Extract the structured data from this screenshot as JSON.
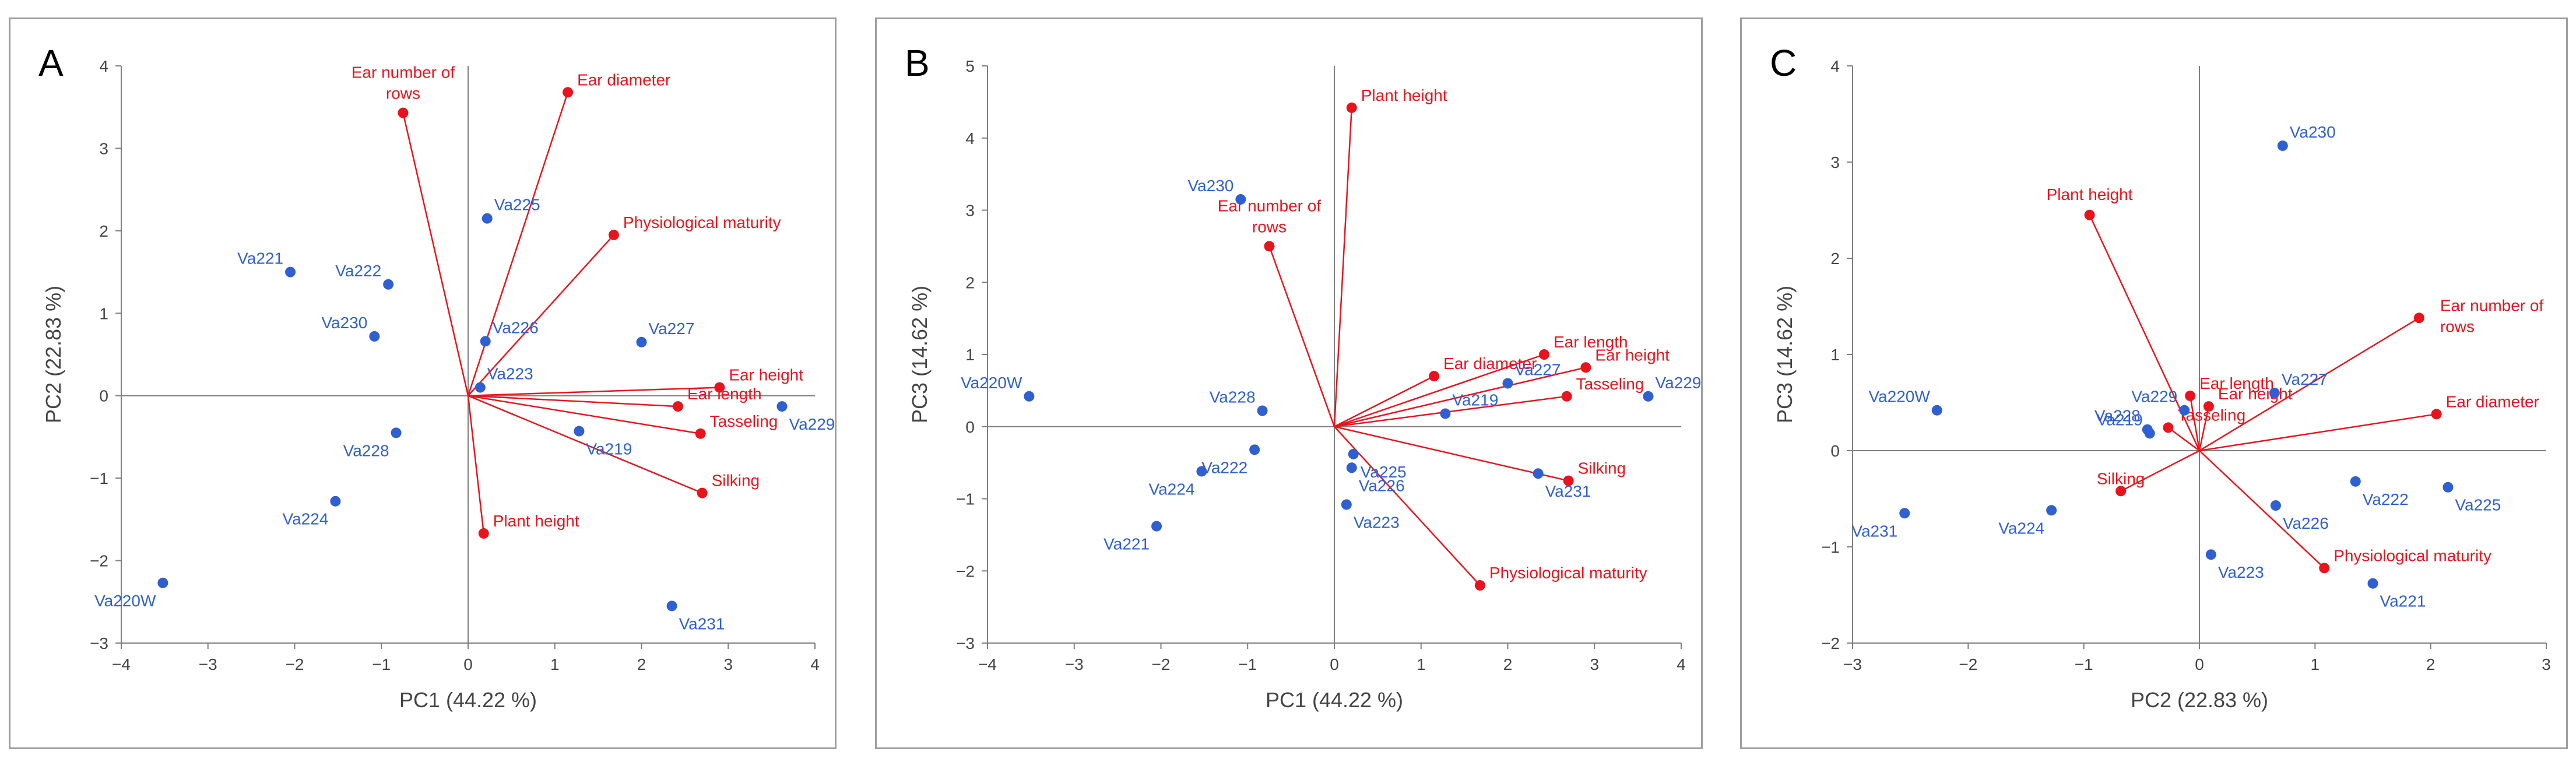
{
  "chart_data": [
    {
      "type": "scatter",
      "panel_label": "A",
      "title": "",
      "xlabel": "PC1 (44.22 %)",
      "ylabel": "PC2 (22.83 %)",
      "xlim": [
        -4,
        4
      ],
      "ylim": [
        -3,
        4
      ],
      "xticks": [
        -4,
        -3,
        -2,
        -1,
        0,
        1,
        2,
        3,
        4
      ],
      "yticks": [
        -3,
        -2,
        -1,
        0,
        1,
        2,
        3,
        4
      ],
      "genotypes": [
        {
          "label": "Va225",
          "x": 0.22,
          "y": 2.15
        },
        {
          "label": "Va221",
          "x": -2.05,
          "y": 1.5
        },
        {
          "label": "Va222",
          "x": -0.92,
          "y": 1.35
        },
        {
          "label": "Va230",
          "x": -1.08,
          "y": 0.72
        },
        {
          "label": "Va226",
          "x": 0.2,
          "y": 0.66
        },
        {
          "label": "Va227",
          "x": 2.0,
          "y": 0.65
        },
        {
          "label": "Va223",
          "x": 0.14,
          "y": 0.1
        },
        {
          "label": "Va229",
          "x": 3.62,
          "y": -0.13
        },
        {
          "label": "Va219",
          "x": 1.28,
          "y": -0.43
        },
        {
          "label": "Va228",
          "x": -0.83,
          "y": -0.45
        },
        {
          "label": "Va224",
          "x": -1.53,
          "y": -1.28
        },
        {
          "label": "Va220W",
          "x": -3.52,
          "y": -2.27
        },
        {
          "label": "Va231",
          "x": 2.35,
          "y": -2.55
        }
      ],
      "traits": [
        {
          "label": "Ear number of rows",
          "x": -0.75,
          "y": 3.43
        },
        {
          "label": "Ear diameter",
          "x": 1.15,
          "y": 3.68
        },
        {
          "label": "Physiological maturity",
          "x": 1.68,
          "y": 1.95
        },
        {
          "label": "Ear height",
          "x": 2.9,
          "y": 0.1
        },
        {
          "label": "Ear length",
          "x": 2.42,
          "y": -0.13
        },
        {
          "label": "Tasseling",
          "x": 2.68,
          "y": -0.46
        },
        {
          "label": "Silking",
          "x": 2.7,
          "y": -1.18
        },
        {
          "label": "Plant height",
          "x": 0.18,
          "y": -1.67
        }
      ]
    },
    {
      "type": "scatter",
      "panel_label": "B",
      "title": "",
      "xlabel": "PC1 (44.22 %)",
      "ylabel": "PC3 (14.62 %)",
      "xlim": [
        -4,
        4
      ],
      "ylim": [
        -3,
        5
      ],
      "xticks": [
        -4,
        -3,
        -2,
        -1,
        0,
        1,
        2,
        3,
        4
      ],
      "yticks": [
        -3,
        -2,
        -1,
        0,
        1,
        2,
        3,
        4,
        5
      ],
      "genotypes": [
        {
          "label": "Va230",
          "x": -1.08,
          "y": 3.15
        },
        {
          "label": "Va220W",
          "x": -3.52,
          "y": 0.42
        },
        {
          "label": "Va228",
          "x": -0.83,
          "y": 0.22
        },
        {
          "label": "Va222",
          "x": -0.92,
          "y": -0.32
        },
        {
          "label": "Va224",
          "x": -1.53,
          "y": -0.62
        },
        {
          "label": "Va221",
          "x": -2.05,
          "y": -1.38
        },
        {
          "label": "Va225",
          "x": 0.22,
          "y": -0.38
        },
        {
          "label": "Va226",
          "x": 0.2,
          "y": -0.57
        },
        {
          "label": "Va223",
          "x": 0.14,
          "y": -1.08
        },
        {
          "label": "Va219",
          "x": 1.28,
          "y": 0.18
        },
        {
          "label": "Va227",
          "x": 2.0,
          "y": 0.6
        },
        {
          "label": "Va229",
          "x": 3.62,
          "y": 0.42
        },
        {
          "label": "Va231",
          "x": 2.35,
          "y": -0.65
        }
      ],
      "traits": [
        {
          "label": "Plant height",
          "x": 0.2,
          "y": 4.42
        },
        {
          "label": "Ear number of rows",
          "x": -0.75,
          "y": 2.5
        },
        {
          "label": "Ear diameter",
          "x": 1.15,
          "y": 0.7
        },
        {
          "label": "Ear length",
          "x": 2.42,
          "y": 1.0
        },
        {
          "label": "Ear height",
          "x": 2.9,
          "y": 0.82
        },
        {
          "label": "Tasseling",
          "x": 2.68,
          "y": 0.42
        },
        {
          "label": "Silking",
          "x": 2.7,
          "y": -0.75
        },
        {
          "label": "Physiological maturity",
          "x": 1.68,
          "y": -2.2
        }
      ]
    },
    {
      "type": "scatter",
      "panel_label": "C",
      "title": "",
      "xlabel": "PC2 (22.83 %)",
      "ylabel": "PC3 (14.62 %)",
      "xlim": [
        -3,
        3
      ],
      "ylim": [
        -2,
        4
      ],
      "xticks": [
        -3,
        -2,
        -1,
        0,
        1,
        2,
        3
      ],
      "yticks": [
        -2,
        -1,
        0,
        1,
        2,
        3,
        4
      ],
      "genotypes": [
        {
          "label": "Va230",
          "x": 0.72,
          "y": 3.17
        },
        {
          "label": "Va220W",
          "x": -2.27,
          "y": 0.42
        },
        {
          "label": "Va229",
          "x": -0.13,
          "y": 0.42
        },
        {
          "label": "Va228",
          "x": -0.45,
          "y": 0.22
        },
        {
          "label": "Va219",
          "x": -0.43,
          "y": 0.18
        },
        {
          "label": "Va227",
          "x": 0.65,
          "y": 0.6
        },
        {
          "label": "Va231",
          "x": -2.55,
          "y": -0.65
        },
        {
          "label": "Va224",
          "x": -1.28,
          "y": -0.62
        },
        {
          "label": "Va223",
          "x": 0.1,
          "y": -1.08
        },
        {
          "label": "Va226",
          "x": 0.66,
          "y": -0.57
        },
        {
          "label": "Va222",
          "x": 1.35,
          "y": -0.32
        },
        {
          "label": "Va225",
          "x": 2.15,
          "y": -0.38
        },
        {
          "label": "Va221",
          "x": 1.5,
          "y": -1.38
        }
      ],
      "traits": [
        {
          "label": "Plant height",
          "x": -0.95,
          "y": 2.45
        },
        {
          "label": "Ear number of rows",
          "x": 1.9,
          "y": 1.38
        },
        {
          "label": "Ear diameter",
          "x": 2.05,
          "y": 0.38
        },
        {
          "label": "Ear length",
          "x": -0.08,
          "y": 0.57
        },
        {
          "label": "Ear height",
          "x": 0.08,
          "y": 0.46
        },
        {
          "label": "Tasseling",
          "x": -0.27,
          "y": 0.24
        },
        {
          "label": "Silking",
          "x": -0.68,
          "y": -0.42
        },
        {
          "label": "Physiological maturity",
          "x": 1.08,
          "y": -1.22
        }
      ]
    }
  ],
  "colors": {
    "genotype": "#2f5fd0",
    "trait": "#e8141d",
    "axis": "#555555",
    "text": "#444444"
  }
}
